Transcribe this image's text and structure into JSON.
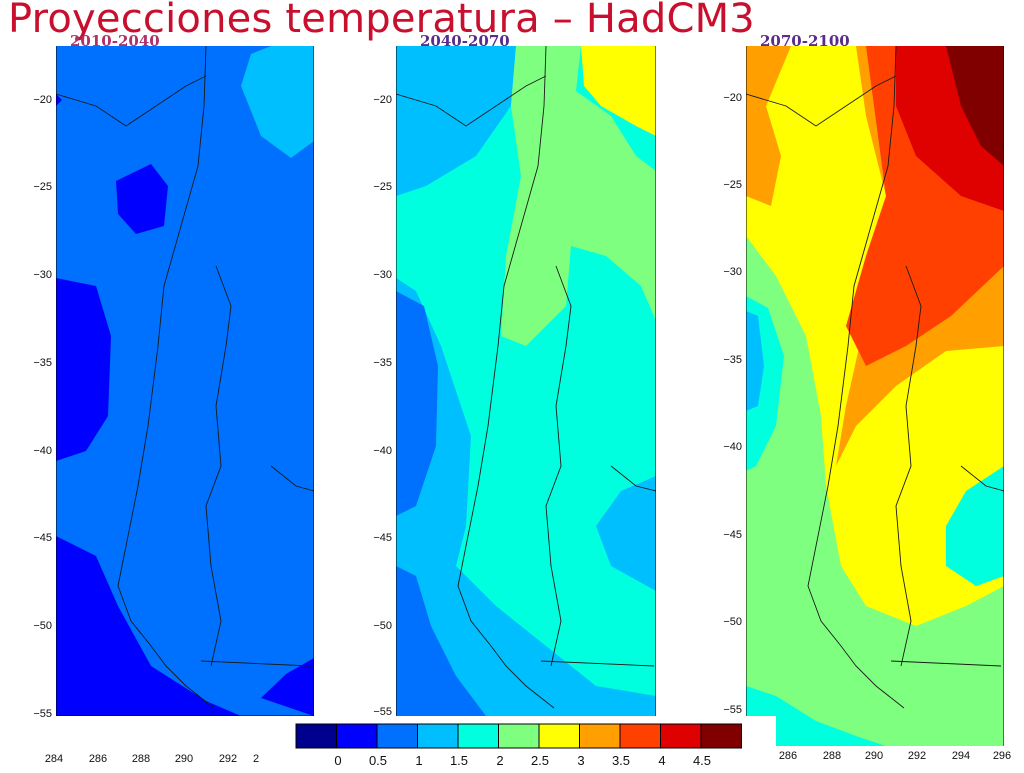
{
  "title": "Proyecciones temperatura – HadCM3",
  "panels": [
    {
      "period": "2010-2040",
      "label_color": "#b0306a"
    },
    {
      "period": "2040-2070",
      "label_color": "#5a2d8c"
    },
    {
      "period": "2070-2100",
      "label_color": "#5a2d8c"
    }
  ],
  "yticks": [
    "−20",
    "−25",
    "−30",
    "−35",
    "−40",
    "−45",
    "−50",
    "−55"
  ],
  "xticks_left": [
    "284",
    "286",
    "288",
    "290",
    "292",
    "2"
  ],
  "xticks_right": [
    "286",
    "288",
    "290",
    "292",
    "294",
    "296"
  ],
  "colorbar": {
    "tick_labels": [
      "0",
      "0.5",
      "1",
      "1.5",
      "2",
      "2.5",
      "3",
      "3.5",
      "4",
      "4.5"
    ],
    "colors": [
      "#00008f",
      "#0000ff",
      "#0070ff",
      "#00bfff",
      "#00ffdf",
      "#7fff7f",
      "#ffff00",
      "#ffa000",
      "#ff4000",
      "#df0000",
      "#800000"
    ]
  }
}
